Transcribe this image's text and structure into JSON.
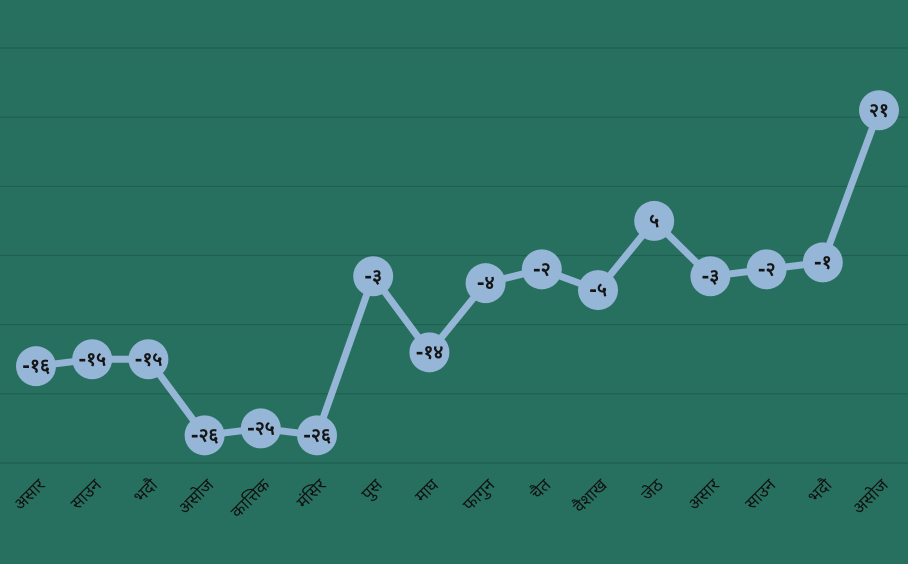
{
  "chart_data": {
    "type": "line",
    "categories": [
      "असार",
      "साउन",
      "भदौ",
      "असोज",
      "कात्तिक",
      "मंसिर",
      "पुस",
      "माघ",
      "फागुन",
      "चैत",
      "वैशाख",
      "जेठ",
      "असार",
      "साउन",
      "भदौ",
      "असोज"
    ],
    "values": [
      -16,
      -15,
      -15,
      -26,
      -25,
      -26,
      -3,
      -14,
      -4,
      -2,
      -5,
      5,
      -3,
      -2,
      -1,
      21
    ],
    "data_labels": [
      "-१६",
      "-१५",
      "-१५",
      "-२६",
      "-२५",
      "-२६",
      "-३",
      "-१४",
      "-४",
      "-२",
      "-५",
      "५",
      "-३",
      "-२",
      "-१",
      "२१"
    ],
    "ylim": [
      -30,
      30
    ],
    "grid": true,
    "colors": {
      "background": "#27705f",
      "line": "#96b6d8",
      "grid": "#1f5e50",
      "label": "#151515"
    }
  }
}
